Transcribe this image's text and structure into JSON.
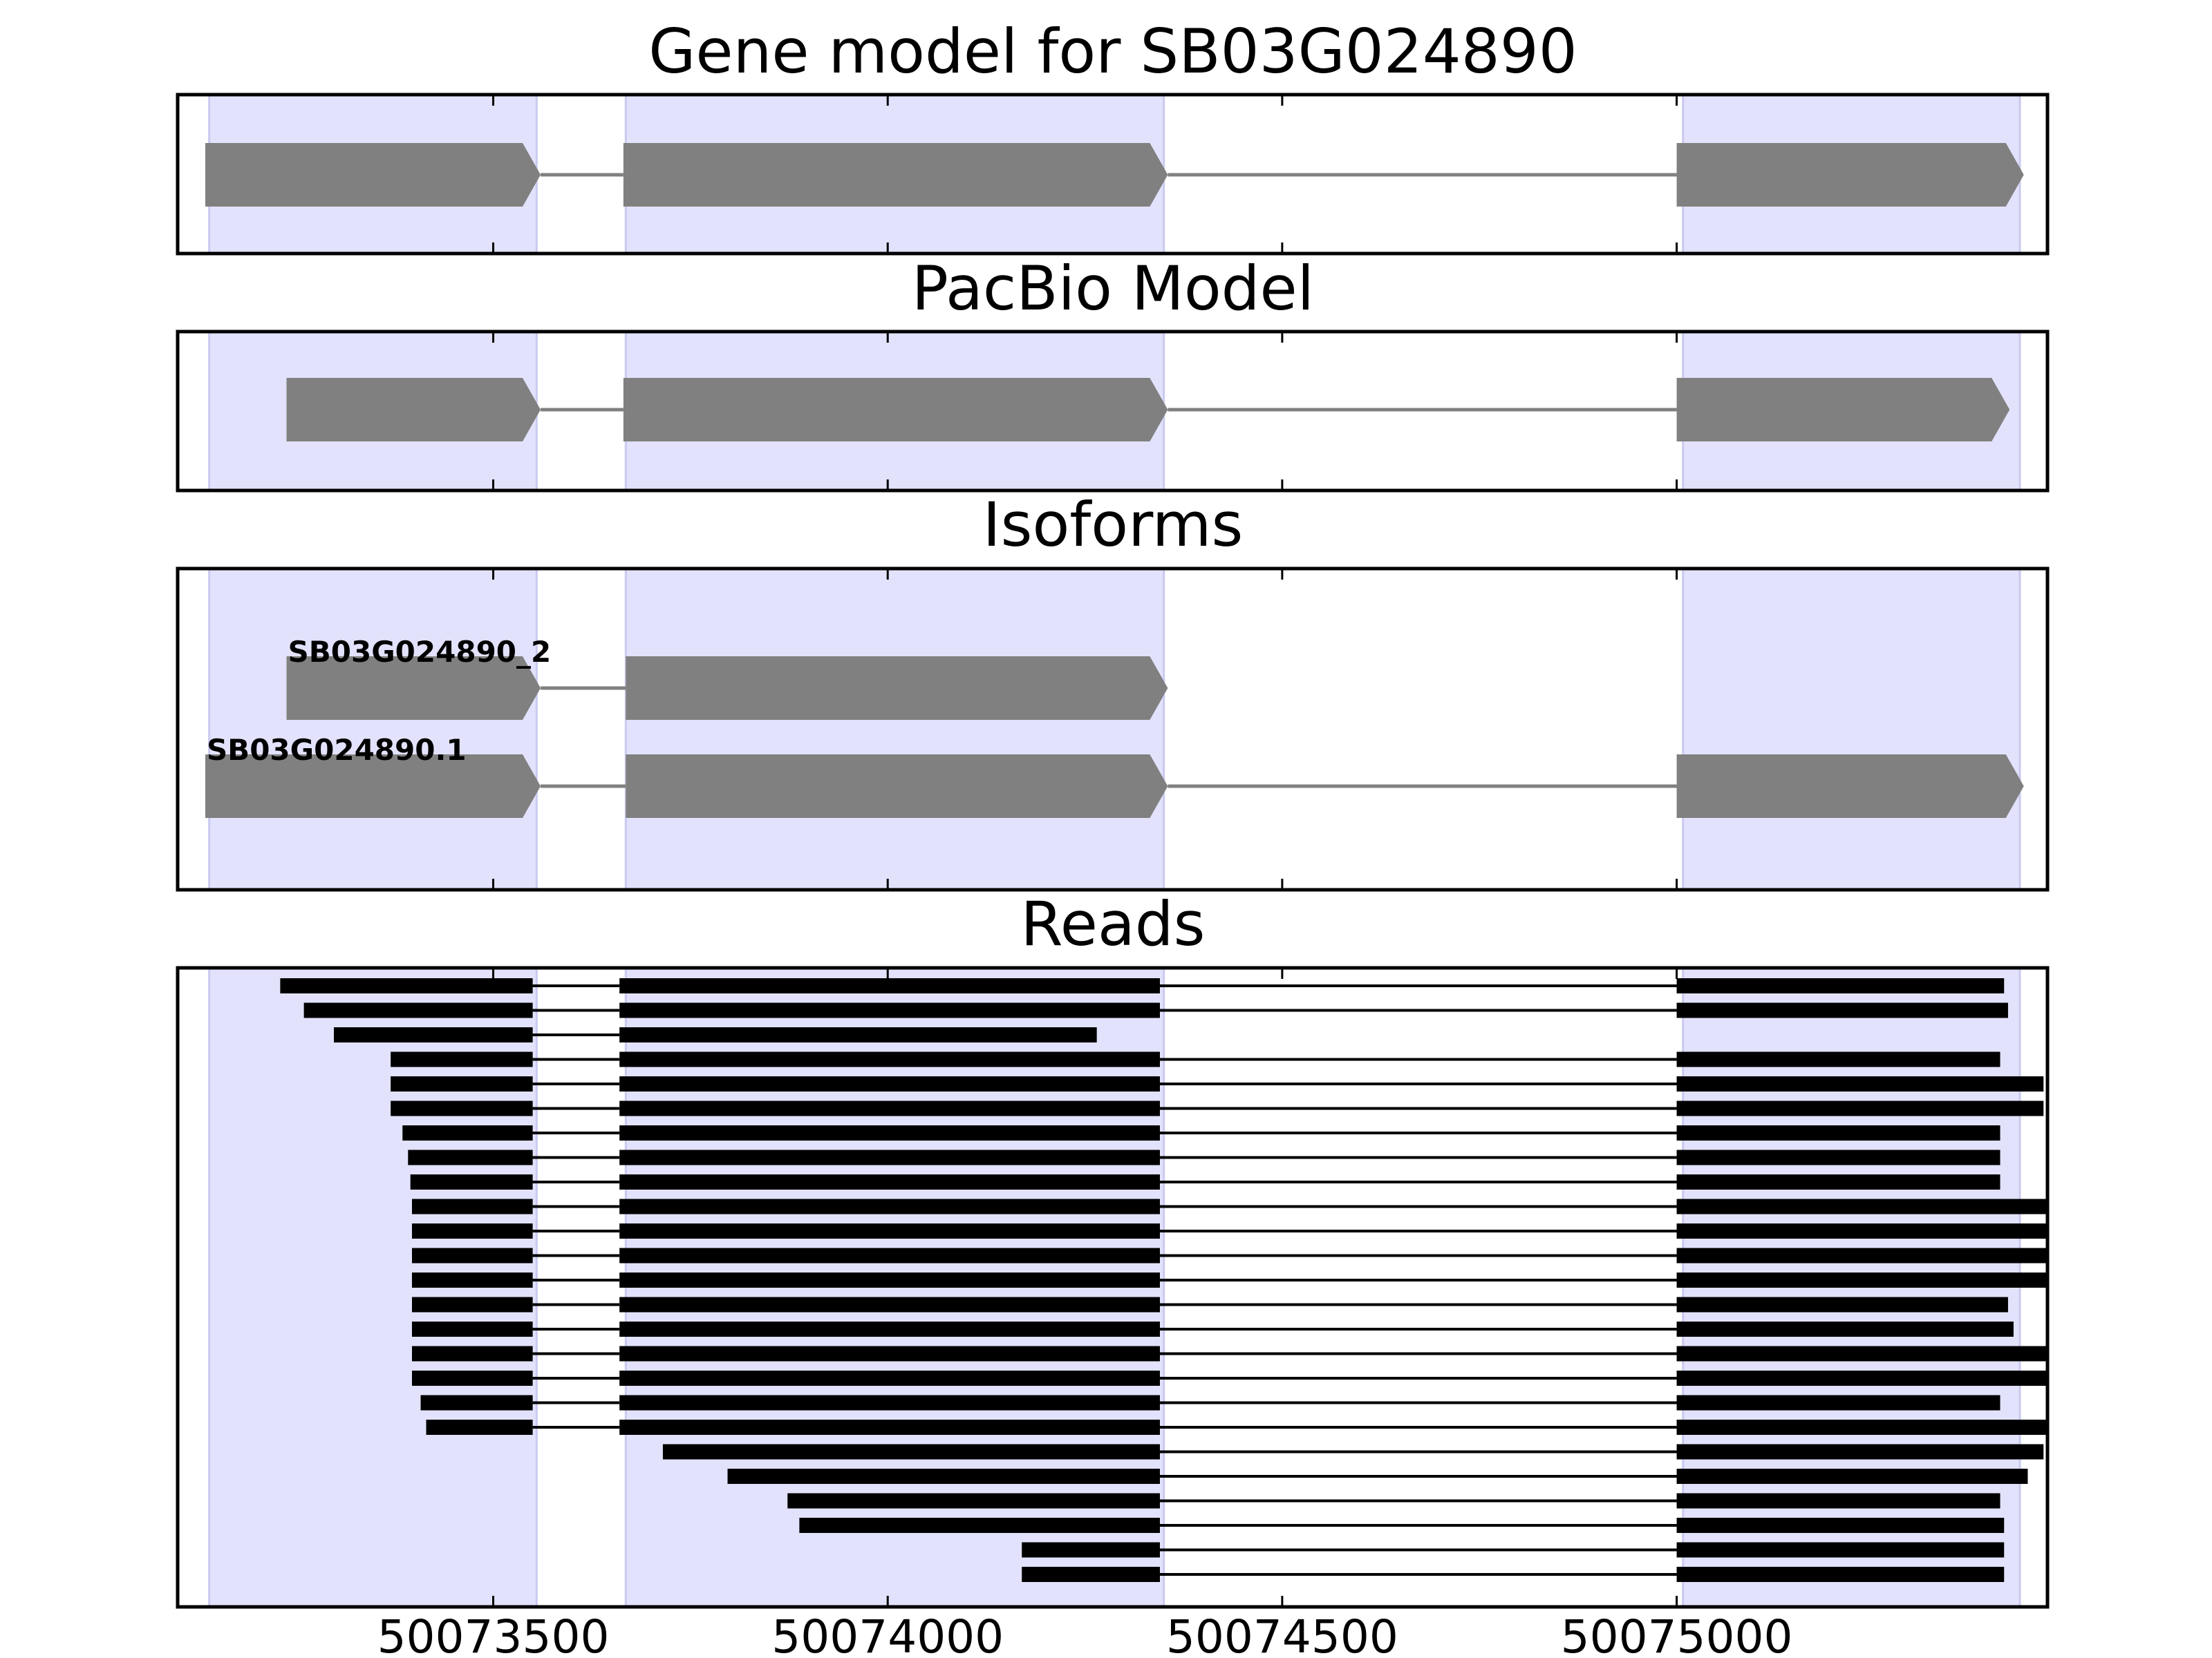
{
  "chart_data": {
    "type": "gene-track",
    "x_range": [
      50073100,
      50075470
    ],
    "xticks": [
      50073500,
      50074000,
      50074500,
      50075000
    ],
    "xtick_labels": [
      "50073500",
      "50074000",
      "50074500",
      "50075000"
    ],
    "highlight_color": "#e2e2fc",
    "feature_color": "#808080",
    "read_color": "#000000",
    "highlight_regions": [
      [
        50073140,
        50073555
      ],
      [
        50073668,
        50074350
      ],
      [
        50075008,
        50075435
      ]
    ],
    "panels": [
      {
        "name": "gene-model",
        "title": "Gene model for SB03G024890",
        "tracks": [
          {
            "label": "",
            "exons": [
              [
                50073135,
                50073560
              ],
              [
                50073665,
                50074355
              ],
              [
                50075000,
                50075440
              ]
            ]
          }
        ]
      },
      {
        "name": "pacbio-model",
        "title": "PacBio Model",
        "tracks": [
          {
            "label": "",
            "exons": [
              [
                50073238,
                50073560
              ],
              [
                50073665,
                50074355
              ],
              [
                50075000,
                50075422
              ]
            ]
          }
        ]
      },
      {
        "name": "isoforms",
        "title": "Isoforms",
        "tracks": [
          {
            "label": "SB03G024890_2",
            "exons": [
              [
                50073238,
                50073560
              ],
              [
                50073668,
                50074355
              ]
            ]
          },
          {
            "label": "SB03G024890.1",
            "exons": [
              [
                50073135,
                50073560
              ],
              [
                50073668,
                50074355
              ],
              [
                50075000,
                50075440
              ]
            ]
          }
        ]
      },
      {
        "name": "reads",
        "title": "Reads",
        "reads": [
          [
            [
              50073230,
              50073550
            ],
            [
              50073660,
              50074345
            ],
            [
              50075000,
              50075415
            ]
          ],
          [
            [
              50073260,
              50073550
            ],
            [
              50073660,
              50074345
            ],
            [
              50075000,
              50075420
            ]
          ],
          [
            [
              50073298,
              50073550
            ],
            [
              50073660,
              50074265
            ]
          ],
          [
            [
              50073370,
              50073550
            ],
            [
              50073660,
              50074345
            ],
            [
              50075000,
              50075410
            ]
          ],
          [
            [
              50073370,
              50073550
            ],
            [
              50073660,
              50074345
            ],
            [
              50075000,
              50075465
            ]
          ],
          [
            [
              50073370,
              50073550
            ],
            [
              50073660,
              50074345
            ],
            [
              50075000,
              50075465
            ]
          ],
          [
            [
              50073385,
              50073550
            ],
            [
              50073660,
              50074345
            ],
            [
              50075000,
              50075410
            ]
          ],
          [
            [
              50073392,
              50073550
            ],
            [
              50073660,
              50074345
            ],
            [
              50075000,
              50075410
            ]
          ],
          [
            [
              50073395,
              50073550
            ],
            [
              50073660,
              50074345
            ],
            [
              50075000,
              50075410
            ]
          ],
          [
            [
              50073397,
              50073550
            ],
            [
              50073660,
              50074345
            ],
            [
              50075000,
              50075470
            ]
          ],
          [
            [
              50073397,
              50073550
            ],
            [
              50073660,
              50074345
            ],
            [
              50075000,
              50075470
            ]
          ],
          [
            [
              50073397,
              50073550
            ],
            [
              50073660,
              50074345
            ],
            [
              50075000,
              50075470
            ]
          ],
          [
            [
              50073397,
              50073550
            ],
            [
              50073660,
              50074345
            ],
            [
              50075000,
              50075470
            ]
          ],
          [
            [
              50073397,
              50073550
            ],
            [
              50073660,
              50074345
            ],
            [
              50075000,
              50075420
            ]
          ],
          [
            [
              50073397,
              50073550
            ],
            [
              50073660,
              50074345
            ],
            [
              50075000,
              50075427
            ]
          ],
          [
            [
              50073397,
              50073550
            ],
            [
              50073660,
              50074345
            ],
            [
              50075000,
              50075470
            ]
          ],
          [
            [
              50073397,
              50073550
            ],
            [
              50073660,
              50074345
            ],
            [
              50075000,
              50075470
            ]
          ],
          [
            [
              50073408,
              50073550
            ],
            [
              50073660,
              50074345
            ],
            [
              50075000,
              50075410
            ]
          ],
          [
            [
              50073415,
              50073550
            ],
            [
              50073660,
              50074345
            ],
            [
              50075000,
              50075470
            ]
          ],
          [
            [
              50073715,
              50074345
            ],
            [
              50075000,
              50075465
            ]
          ],
          [
            [
              50073797,
              50074345
            ],
            [
              50075000,
              50075445
            ]
          ],
          [
            [
              50073873,
              50074345
            ],
            [
              50075000,
              50075410
            ]
          ],
          [
            [
              50073888,
              50074345
            ],
            [
              50075000,
              50075415
            ]
          ],
          [
            [
              50074170,
              50074345
            ],
            [
              50075000,
              50075415
            ]
          ],
          [
            [
              50074170,
              50074345
            ],
            [
              50075000,
              50075415
            ]
          ]
        ]
      }
    ]
  }
}
